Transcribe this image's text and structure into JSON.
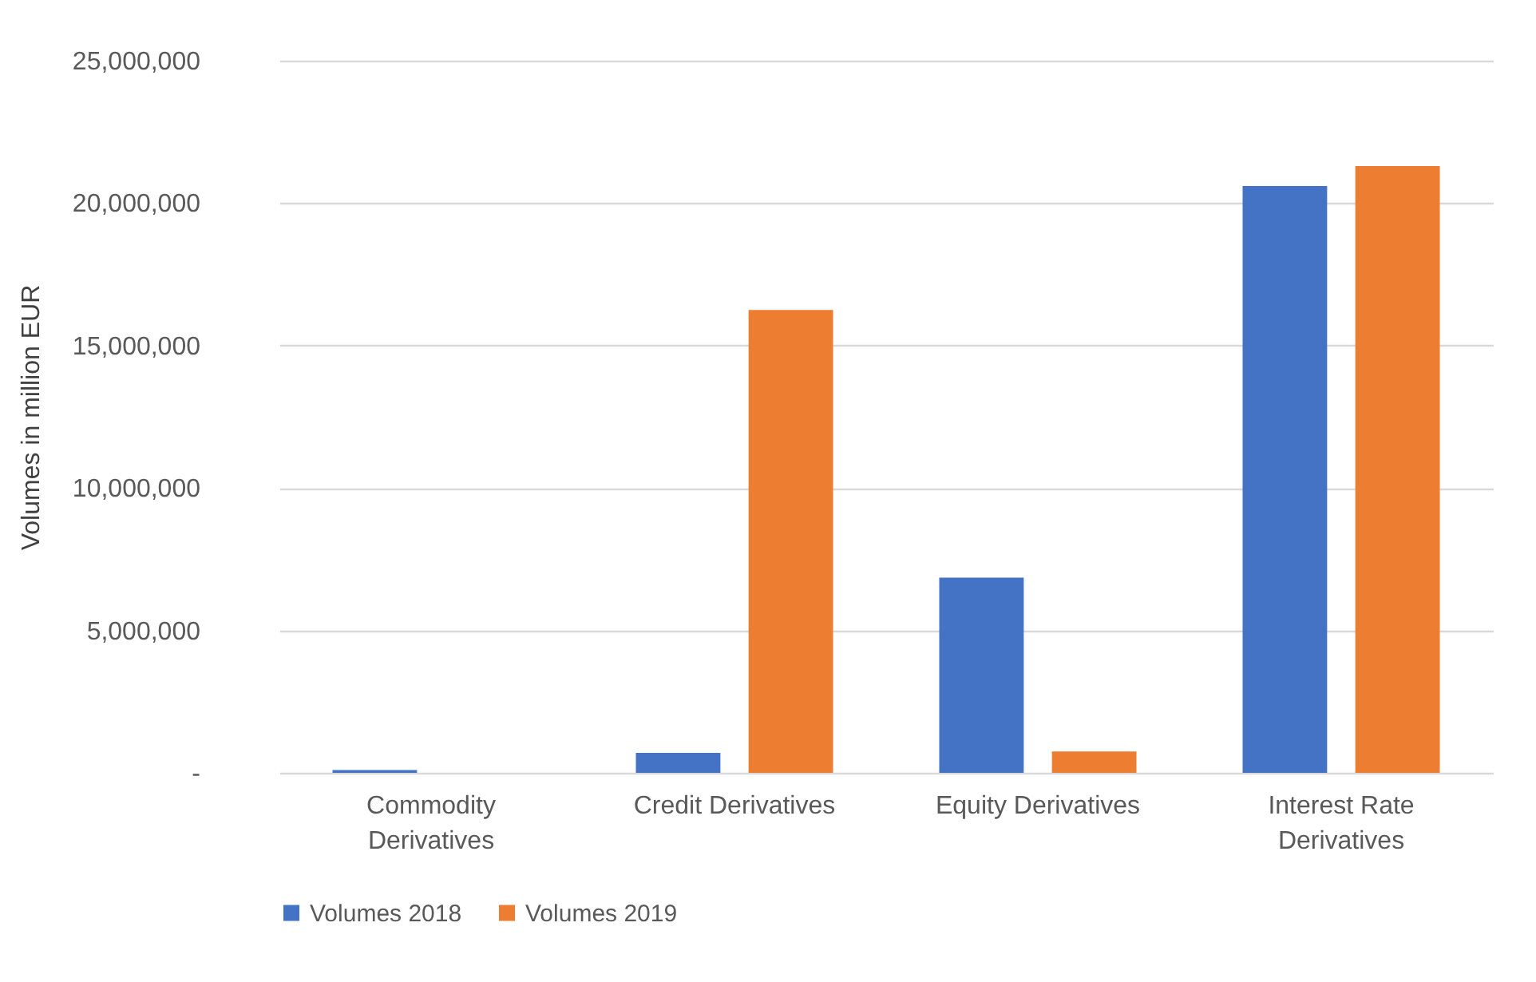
{
  "chart_data": {
    "type": "bar",
    "ylabel": "Volumes in million EUR",
    "categories": [
      "Commodity Derivatives",
      "Credit Derivatives",
      "Equity Derivatives",
      "Interest Rate Derivatives"
    ],
    "series": [
      {
        "name": "Volumes 2018",
        "color": "#4472c4",
        "values": [
          100000,
          700000,
          6850000,
          20600000
        ]
      },
      {
        "name": "Volumes 2019",
        "color": "#ed7d31",
        "values": [
          0,
          16250000,
          750000,
          21300000
        ]
      }
    ],
    "ylim": [
      0,
      25000000
    ],
    "yticks": [
      {
        "value": 0,
        "label": "-"
      },
      {
        "value": 5000000,
        "label": "5,000,000"
      },
      {
        "value": 10000000,
        "label": "10,000,000"
      },
      {
        "value": 15000000,
        "label": "15,000,000"
      },
      {
        "value": 20000000,
        "label": "20,000,000"
      },
      {
        "value": 25000000,
        "label": "25,000,000"
      }
    ],
    "grid": "y",
    "legend": "bottom"
  }
}
